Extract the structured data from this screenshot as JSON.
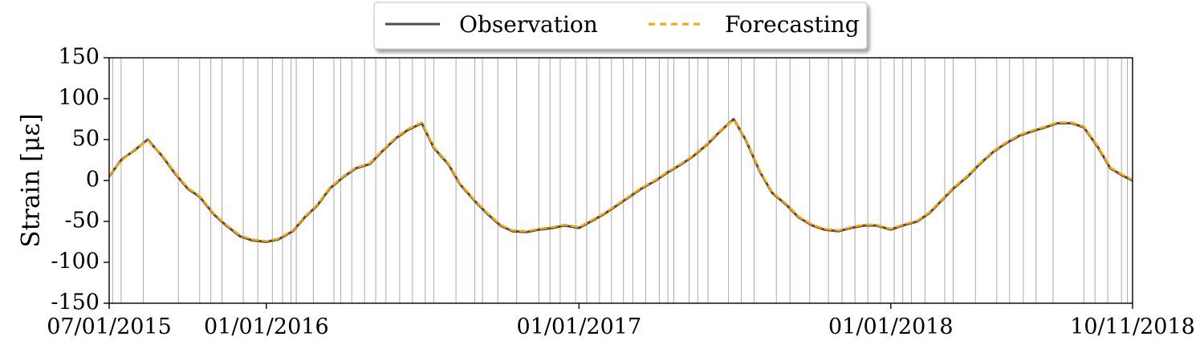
{
  "chart_data": {
    "type": "line",
    "title": "",
    "xlabel": "",
    "ylabel": "Strain [με]",
    "xlim": [
      "2015-07-01",
      "2018-10-11"
    ],
    "ylim": [
      -150,
      150
    ],
    "y_ticks": [
      150,
      100,
      50,
      0,
      -50,
      -100,
      -150
    ],
    "y_tick_labels": [
      "150",
      "100",
      "50",
      "0",
      "-50",
      "-100",
      "-150"
    ],
    "x_ticks": [
      "2015-07-01",
      "2016-01-01",
      "2017-01-01",
      "2018-01-01",
      "2018-10-11"
    ],
    "x_tick_labels": [
      "07/01/2015",
      "01/01/2016",
      "01/01/2017",
      "01/01/2018",
      "10/11/2018"
    ],
    "grid": false,
    "legend_position": "top-center",
    "colors": {
      "observation": "#4d4d4d",
      "forecasting": "#ffa500",
      "event_lines": "#aaaaaa"
    },
    "series": [
      {
        "name": "Observation",
        "style": "solid",
        "x": [
          "2015-07-01",
          "2015-07-15",
          "2015-08-01",
          "2015-08-15",
          "2015-09-01",
          "2015-09-15",
          "2015-10-01",
          "2015-10-15",
          "2015-11-01",
          "2015-11-15",
          "2015-12-01",
          "2015-12-15",
          "2016-01-01",
          "2016-01-15",
          "2016-02-01",
          "2016-02-15",
          "2016-03-01",
          "2016-03-15",
          "2016-04-01",
          "2016-04-15",
          "2016-05-01",
          "2016-05-15",
          "2016-06-01",
          "2016-06-15",
          "2016-07-01",
          "2016-07-15",
          "2016-08-01",
          "2016-08-15",
          "2016-09-01",
          "2016-09-15",
          "2016-10-01",
          "2016-10-15",
          "2016-11-01",
          "2016-11-15",
          "2016-12-01",
          "2016-12-15",
          "2017-01-01",
          "2017-01-15",
          "2017-02-01",
          "2017-02-15",
          "2017-03-01",
          "2017-03-15",
          "2017-04-01",
          "2017-04-15",
          "2017-05-01",
          "2017-05-15",
          "2017-06-01",
          "2017-06-15",
          "2017-07-01",
          "2017-07-15",
          "2017-08-01",
          "2017-08-15",
          "2017-09-01",
          "2017-09-15",
          "2017-10-01",
          "2017-10-15",
          "2017-11-01",
          "2017-11-15",
          "2017-12-01",
          "2017-12-15",
          "2018-01-01",
          "2018-01-15",
          "2018-02-01",
          "2018-02-15",
          "2018-03-01",
          "2018-03-15",
          "2018-04-01",
          "2018-04-15",
          "2018-05-01",
          "2018-05-15",
          "2018-06-01",
          "2018-06-15",
          "2018-07-01",
          "2018-07-15",
          "2018-08-01",
          "2018-08-15",
          "2018-09-01",
          "2018-09-15",
          "2018-10-01",
          "2018-10-11"
        ],
        "values": [
          5,
          25,
          38,
          50,
          30,
          10,
          -10,
          -20,
          -42,
          -55,
          -68,
          -73,
          -75,
          -72,
          -62,
          -45,
          -30,
          -10,
          5,
          15,
          20,
          35,
          52,
          62,
          70,
          40,
          20,
          -5,
          -25,
          -40,
          -55,
          -62,
          -63,
          -60,
          -58,
          -55,
          -58,
          -50,
          -40,
          -30,
          -20,
          -10,
          0,
          10,
          20,
          30,
          45,
          60,
          75,
          50,
          10,
          -15,
          -30,
          -45,
          -55,
          -60,
          -62,
          -58,
          -55,
          -55,
          -60,
          -55,
          -50,
          -40,
          -25,
          -10,
          5,
          20,
          35,
          45,
          55,
          60,
          65,
          70,
          70,
          65,
          40,
          15,
          5,
          0
        ]
      },
      {
        "name": "Forecasting",
        "style": "dashed",
        "x": [
          "2015-07-01",
          "2015-07-15",
          "2015-08-01",
          "2015-08-15",
          "2015-09-01",
          "2015-09-15",
          "2015-10-01",
          "2015-10-15",
          "2015-11-01",
          "2015-11-15",
          "2015-12-01",
          "2015-12-15",
          "2016-01-01",
          "2016-01-15",
          "2016-02-01",
          "2016-02-15",
          "2016-03-01",
          "2016-03-15",
          "2016-04-01",
          "2016-04-15",
          "2016-05-01",
          "2016-05-15",
          "2016-06-01",
          "2016-06-15",
          "2016-07-01",
          "2016-07-15",
          "2016-08-01",
          "2016-08-15",
          "2016-09-01",
          "2016-09-15",
          "2016-10-01",
          "2016-10-15",
          "2016-11-01",
          "2016-11-15",
          "2016-12-01",
          "2016-12-15",
          "2017-01-01",
          "2017-01-15",
          "2017-02-01",
          "2017-02-15",
          "2017-03-01",
          "2017-03-15",
          "2017-04-01",
          "2017-04-15",
          "2017-05-01",
          "2017-05-15",
          "2017-06-01",
          "2017-06-15",
          "2017-07-01",
          "2017-07-15",
          "2017-08-01",
          "2017-08-15",
          "2017-09-01",
          "2017-09-15",
          "2017-10-01",
          "2017-10-15",
          "2017-11-01",
          "2017-11-15",
          "2017-12-01",
          "2017-12-15",
          "2018-01-01",
          "2018-01-15",
          "2018-02-01",
          "2018-02-15",
          "2018-03-01",
          "2018-03-15",
          "2018-04-01",
          "2018-04-15",
          "2018-05-01",
          "2018-05-15",
          "2018-06-01",
          "2018-06-15",
          "2018-07-01",
          "2018-07-15",
          "2018-08-01",
          "2018-08-15",
          "2018-09-01",
          "2018-09-15",
          "2018-10-01",
          "2018-10-11"
        ],
        "values": [
          6,
          24,
          39,
          49,
          31,
          11,
          -9,
          -19,
          -41,
          -54,
          -67,
          -72,
          -74,
          -71,
          -61,
          -44,
          -29,
          -9,
          6,
          16,
          21,
          36,
          53,
          63,
          71,
          41,
          21,
          -4,
          -24,
          -39,
          -54,
          -61,
          -62,
          -59,
          -57,
          -54,
          -57,
          -49,
          -39,
          -29,
          -19,
          -9,
          1,
          11,
          21,
          31,
          46,
          61,
          74,
          51,
          11,
          -14,
          -29,
          -44,
          -54,
          -59,
          -61,
          -57,
          -54,
          -54,
          -59,
          -54,
          -49,
          -39,
          -24,
          -9,
          6,
          21,
          36,
          46,
          56,
          61,
          66,
          71,
          71,
          66,
          41,
          16,
          6,
          1
        ]
      }
    ],
    "event_dates": [
      "2015-07-05",
      "2015-07-15",
      "2015-08-10",
      "2015-09-20",
      "2015-10-15",
      "2015-10-28",
      "2015-11-10",
      "2015-12-05",
      "2015-12-22",
      "2016-01-08",
      "2016-01-20",
      "2016-01-30",
      "2016-02-05",
      "2016-02-25",
      "2016-03-20",
      "2016-03-28",
      "2016-04-10",
      "2016-04-25",
      "2016-05-08",
      "2016-05-20",
      "2016-06-05",
      "2016-06-20",
      "2016-07-05",
      "2016-07-15",
      "2016-08-10",
      "2016-09-01",
      "2016-09-10",
      "2016-09-28",
      "2016-10-20",
      "2016-11-15",
      "2016-11-28",
      "2016-12-10",
      "2016-12-28",
      "2017-01-10",
      "2017-01-25",
      "2017-02-08",
      "2017-02-22",
      "2017-03-05",
      "2017-03-20",
      "2017-04-05",
      "2017-04-15",
      "2017-04-22",
      "2017-05-10",
      "2017-05-20",
      "2017-06-01",
      "2017-06-25",
      "2017-07-10",
      "2017-07-25",
      "2017-08-20",
      "2017-09-05",
      "2017-09-28",
      "2017-10-20",
      "2017-11-05",
      "2017-11-20",
      "2017-12-05",
      "2017-12-20",
      "2018-01-05",
      "2018-01-15",
      "2018-01-25",
      "2018-02-10",
      "2018-03-05",
      "2018-03-15",
      "2018-04-10",
      "2018-05-05",
      "2018-05-20",
      "2018-06-05",
      "2018-06-20",
      "2018-07-10",
      "2018-08-15",
      "2018-08-28",
      "2018-09-12",
      "2018-09-28",
      "2018-10-05"
    ]
  },
  "legend": {
    "items": [
      {
        "label": "Observation"
      },
      {
        "label": "Forecasting"
      }
    ]
  }
}
